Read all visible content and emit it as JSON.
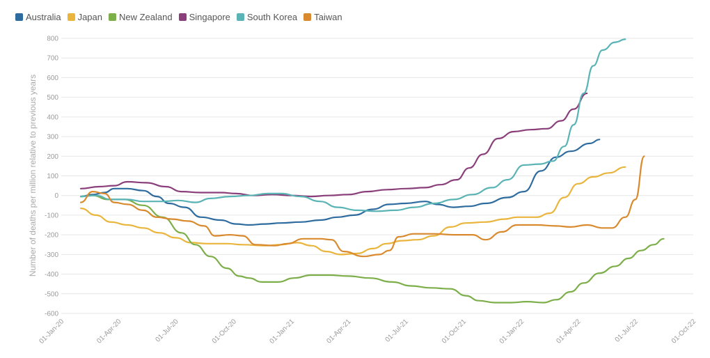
{
  "chart_data": {
    "type": "line",
    "ylabel": "Number of deaths per million relative to previous years",
    "xlabel": "",
    "ylim": [
      -600,
      800
    ],
    "yticks": [
      800,
      700,
      600,
      500,
      400,
      300,
      200,
      100,
      0,
      -100,
      -200,
      -300,
      -400,
      -500,
      -600
    ],
    "xticks": [
      "01-Jan-20",
      "01-Apr-20",
      "01-Jul-20",
      "01-Oct-20",
      "01-Jan-21",
      "01-Apr-21",
      "01-Jul-21",
      "01-Oct-21",
      "01-Jan-22",
      "01-Apr-22",
      "01-Jul-22",
      "01-Oct-22"
    ],
    "legend_position": "top-left",
    "grid": true,
    "series": [
      {
        "name": "Australia",
        "color": "#2e6b9e",
        "points": [
          [
            "2020-02-01",
            -5
          ],
          [
            "2020-02-20",
            5
          ],
          [
            "2020-03-10",
            15
          ],
          [
            "2020-03-25",
            35
          ],
          [
            "2020-04-15",
            35
          ],
          [
            "2020-05-10",
            25
          ],
          [
            "2020-06-01",
            -5
          ],
          [
            "2020-06-20",
            -40
          ],
          [
            "2020-07-15",
            -60
          ],
          [
            "2020-08-10",
            -110
          ],
          [
            "2020-09-10",
            -125
          ],
          [
            "2020-10-05",
            -145
          ],
          [
            "2020-10-25",
            -150
          ],
          [
            "2020-11-20",
            -145
          ],
          [
            "2020-12-15",
            -140
          ],
          [
            "2021-01-15",
            -135
          ],
          [
            "2021-02-15",
            -125
          ],
          [
            "2021-03-15",
            -110
          ],
          [
            "2021-04-10",
            -100
          ],
          [
            "2021-05-10",
            -70
          ],
          [
            "2021-06-05",
            -45
          ],
          [
            "2021-07-01",
            -40
          ],
          [
            "2021-08-01",
            -30
          ],
          [
            "2021-08-20",
            -45
          ],
          [
            "2021-09-15",
            -60
          ],
          [
            "2021-10-10",
            -55
          ],
          [
            "2021-11-05",
            -40
          ],
          [
            "2021-12-10",
            -10
          ],
          [
            "2022-01-05",
            20
          ],
          [
            "2022-02-01",
            125
          ],
          [
            "2022-02-25",
            195
          ],
          [
            "2022-03-20",
            225
          ],
          [
            "2022-04-20",
            265
          ],
          [
            "2022-05-05",
            285
          ]
        ]
      },
      {
        "name": "Japan",
        "color": "#e9b53c",
        "points": [
          [
            "2020-02-01",
            -65
          ],
          [
            "2020-02-25",
            -100
          ],
          [
            "2020-03-20",
            -135
          ],
          [
            "2020-04-15",
            -150
          ],
          [
            "2020-05-10",
            -165
          ],
          [
            "2020-06-05",
            -190
          ],
          [
            "2020-07-01",
            -215
          ],
          [
            "2020-07-25",
            -240
          ],
          [
            "2020-08-20",
            -245
          ],
          [
            "2020-09-20",
            -245
          ],
          [
            "2020-10-15",
            -250
          ],
          [
            "2020-11-20",
            -255
          ],
          [
            "2020-12-15",
            -250
          ],
          [
            "2021-01-10",
            -240
          ],
          [
            "2021-02-01",
            -255
          ],
          [
            "2021-02-25",
            -285
          ],
          [
            "2021-03-20",
            -300
          ],
          [
            "2021-04-15",
            -295
          ],
          [
            "2021-05-10",
            -270
          ],
          [
            "2021-06-01",
            -245
          ],
          [
            "2021-06-25",
            -230
          ],
          [
            "2021-07-20",
            -225
          ],
          [
            "2021-08-15",
            -205
          ],
          [
            "2021-09-10",
            -160
          ],
          [
            "2021-10-05",
            -140
          ],
          [
            "2021-11-05",
            -135
          ],
          [
            "2021-12-05",
            -120
          ],
          [
            "2021-12-25",
            -110
          ],
          [
            "2022-01-25",
            -110
          ],
          [
            "2022-02-15",
            -90
          ],
          [
            "2022-03-10",
            -10
          ],
          [
            "2022-04-01",
            60
          ],
          [
            "2022-04-25",
            95
          ],
          [
            "2022-05-20",
            115
          ],
          [
            "2022-06-15",
            145
          ]
        ]
      },
      {
        "name": "New Zealand",
        "color": "#7cae4a",
        "points": [
          [
            "2020-02-01",
            -5
          ],
          [
            "2020-02-20",
            0
          ],
          [
            "2020-03-15",
            -20
          ],
          [
            "2020-04-10",
            -20
          ],
          [
            "2020-05-10",
            -50
          ],
          [
            "2020-06-10",
            -110
          ],
          [
            "2020-07-10",
            -190
          ],
          [
            "2020-08-01",
            -250
          ],
          [
            "2020-08-25",
            -310
          ],
          [
            "2020-09-20",
            -370
          ],
          [
            "2020-10-10",
            -410
          ],
          [
            "2020-10-25",
            -420
          ],
          [
            "2020-11-15",
            -440
          ],
          [
            "2020-12-10",
            -440
          ],
          [
            "2021-01-05",
            -420
          ],
          [
            "2021-02-01",
            -405
          ],
          [
            "2021-03-01",
            -405
          ],
          [
            "2021-04-01",
            -410
          ],
          [
            "2021-05-05",
            -420
          ],
          [
            "2021-06-10",
            -440
          ],
          [
            "2021-07-10",
            -460
          ],
          [
            "2021-08-10",
            -470
          ],
          [
            "2021-09-10",
            -475
          ],
          [
            "2021-10-05",
            -510
          ],
          [
            "2021-10-25",
            -535
          ],
          [
            "2021-11-20",
            -545
          ],
          [
            "2021-12-15",
            -545
          ],
          [
            "2022-01-10",
            -540
          ],
          [
            "2022-02-05",
            -545
          ],
          [
            "2022-02-25",
            -530
          ],
          [
            "2022-03-20",
            -490
          ],
          [
            "2022-04-10",
            -445
          ],
          [
            "2022-05-05",
            -395
          ],
          [
            "2022-05-30",
            -360
          ],
          [
            "2022-06-20",
            -320
          ],
          [
            "2022-07-10",
            -280
          ],
          [
            "2022-07-30",
            -250
          ],
          [
            "2022-08-15",
            -220
          ]
        ]
      },
      {
        "name": "Singapore",
        "color": "#8a3f7a",
        "points": [
          [
            "2020-02-01",
            35
          ],
          [
            "2020-03-01",
            45
          ],
          [
            "2020-03-25",
            50
          ],
          [
            "2020-04-15",
            70
          ],
          [
            "2020-05-15",
            65
          ],
          [
            "2020-06-15",
            45
          ],
          [
            "2020-07-10",
            20
          ],
          [
            "2020-08-10",
            15
          ],
          [
            "2020-09-10",
            15
          ],
          [
            "2020-10-05",
            10
          ],
          [
            "2020-11-01",
            0
          ],
          [
            "2020-12-01",
            5
          ],
          [
            "2021-01-01",
            0
          ],
          [
            "2021-02-01",
            -5
          ],
          [
            "2021-03-01",
            0
          ],
          [
            "2021-04-01",
            5
          ],
          [
            "2021-05-01",
            20
          ],
          [
            "2021-06-01",
            30
          ],
          [
            "2021-07-01",
            35
          ],
          [
            "2021-08-01",
            40
          ],
          [
            "2021-08-25",
            55
          ],
          [
            "2021-09-20",
            80
          ],
          [
            "2021-10-10",
            140
          ],
          [
            "2021-11-01",
            210
          ],
          [
            "2021-11-25",
            290
          ],
          [
            "2021-12-20",
            325
          ],
          [
            "2022-01-15",
            335
          ],
          [
            "2022-02-10",
            340
          ],
          [
            "2022-03-05",
            380
          ],
          [
            "2022-03-25",
            440
          ],
          [
            "2022-04-15",
            520
          ]
        ]
      },
      {
        "name": "South Korea",
        "color": "#5ab3b5",
        "points": [
          [
            "2020-02-01",
            -5
          ],
          [
            "2020-02-25",
            0
          ],
          [
            "2020-03-20",
            -20
          ],
          [
            "2020-04-15",
            -20
          ],
          [
            "2020-05-10",
            -30
          ],
          [
            "2020-06-10",
            -30
          ],
          [
            "2020-07-05",
            -25
          ],
          [
            "2020-08-01",
            -35
          ],
          [
            "2020-08-25",
            -15
          ],
          [
            "2020-09-25",
            -5
          ],
          [
            "2020-10-25",
            0
          ],
          [
            "2020-11-25",
            10
          ],
          [
            "2020-12-15",
            10
          ],
          [
            "2021-01-15",
            -5
          ],
          [
            "2021-02-15",
            -30
          ],
          [
            "2021-03-15",
            -60
          ],
          [
            "2021-04-15",
            -75
          ],
          [
            "2021-05-15",
            -80
          ],
          [
            "2021-06-15",
            -75
          ],
          [
            "2021-07-15",
            -60
          ],
          [
            "2021-08-15",
            -40
          ],
          [
            "2021-09-15",
            -20
          ],
          [
            "2021-10-15",
            5
          ],
          [
            "2021-11-15",
            40
          ],
          [
            "2021-12-10",
            80
          ],
          [
            "2022-01-05",
            155
          ],
          [
            "2022-01-30",
            160
          ],
          [
            "2022-02-20",
            175
          ],
          [
            "2022-03-10",
            250
          ],
          [
            "2022-03-25",
            360
          ],
          [
            "2022-04-10",
            520
          ],
          [
            "2022-04-25",
            660
          ],
          [
            "2022-05-10",
            740
          ],
          [
            "2022-05-30",
            780
          ],
          [
            "2022-06-15",
            795
          ]
        ]
      },
      {
        "name": "Taiwan",
        "color": "#d98a2e",
        "points": [
          [
            "2020-02-01",
            -35
          ],
          [
            "2020-02-20",
            20
          ],
          [
            "2020-03-10",
            10
          ],
          [
            "2020-03-25",
            -35
          ],
          [
            "2020-04-15",
            -45
          ],
          [
            "2020-05-10",
            -75
          ],
          [
            "2020-06-01",
            -110
          ],
          [
            "2020-06-25",
            -120
          ],
          [
            "2020-07-20",
            -130
          ],
          [
            "2020-08-15",
            -155
          ],
          [
            "2020-09-01",
            -205
          ],
          [
            "2020-09-25",
            -200
          ],
          [
            "2020-10-15",
            -205
          ],
          [
            "2020-11-05",
            -250
          ],
          [
            "2020-12-05",
            -255
          ],
          [
            "2020-12-25",
            -245
          ],
          [
            "2021-01-20",
            -220
          ],
          [
            "2021-02-15",
            -220
          ],
          [
            "2021-03-05",
            -225
          ],
          [
            "2021-03-25",
            -285
          ],
          [
            "2021-04-25",
            -310
          ],
          [
            "2021-05-20",
            -300
          ],
          [
            "2021-06-05",
            -280
          ],
          [
            "2021-06-20",
            -210
          ],
          [
            "2021-07-15",
            -195
          ],
          [
            "2021-08-15",
            -195
          ],
          [
            "2021-09-15",
            -200
          ],
          [
            "2021-10-15",
            -200
          ],
          [
            "2021-11-05",
            -225
          ],
          [
            "2021-12-01",
            -185
          ],
          [
            "2021-12-25",
            -150
          ],
          [
            "2022-01-25",
            -150
          ],
          [
            "2022-02-25",
            -155
          ],
          [
            "2022-03-20",
            -160
          ],
          [
            "2022-04-15",
            -150
          ],
          [
            "2022-05-10",
            -165
          ],
          [
            "2022-05-25",
            -165
          ],
          [
            "2022-06-15",
            -110
          ],
          [
            "2022-07-01",
            -20
          ],
          [
            "2022-07-15",
            200
          ]
        ]
      }
    ]
  }
}
